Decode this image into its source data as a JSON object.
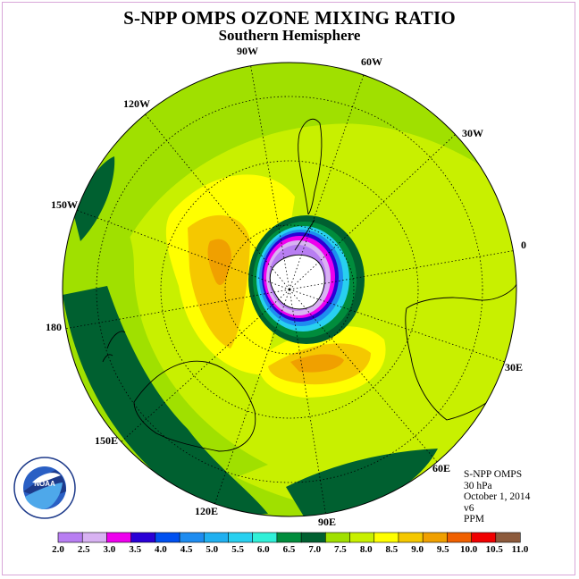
{
  "title": "S-NPP OMPS OZONE MIXING RATIO",
  "subtitle": "Southern Hemisphere",
  "longitude_labels": [
    "90W",
    "60W",
    "30W",
    "0",
    "30E",
    "60E",
    "90E",
    "120E",
    "150E",
    "180",
    "150W",
    "120W"
  ],
  "info_lines": [
    "S-NPP OMPS",
    "30 hPa",
    "October 1, 2014",
    "v6",
    "PPM"
  ],
  "logo_text": "NOAA",
  "logo_ring_text": "NATIONAL OCEANIC AND ATMOSPHERIC ADMINISTRATION · U.S. DEPARTMENT OF COMMERCE",
  "colorbar": {
    "ticks": [
      "2.0",
      "2.5",
      "3.0",
      "3.5",
      "4.0",
      "4.5",
      "5.0",
      "5.5",
      "6.0",
      "6.5",
      "7.0",
      "7.5",
      "8.0",
      "8.5",
      "9.0",
      "9.5",
      "10.0",
      "10.5",
      "11.0"
    ],
    "colors": [
      "#b87ef2",
      "#d8b2f2",
      "#ee00ee",
      "#2a00d6",
      "#0050f0",
      "#1e8cf0",
      "#20b0f0",
      "#28d0f0",
      "#30f0d8",
      "#008c3c",
      "#006030",
      "#a0e000",
      "#c8f000",
      "#ffff00",
      "#f5c800",
      "#f0a000",
      "#f06000",
      "#f00000",
      "#8c5a3c"
    ]
  },
  "colors": {
    "frame": "#d9a7d9",
    "ocean_land_fill_default": "#c8f000"
  }
}
